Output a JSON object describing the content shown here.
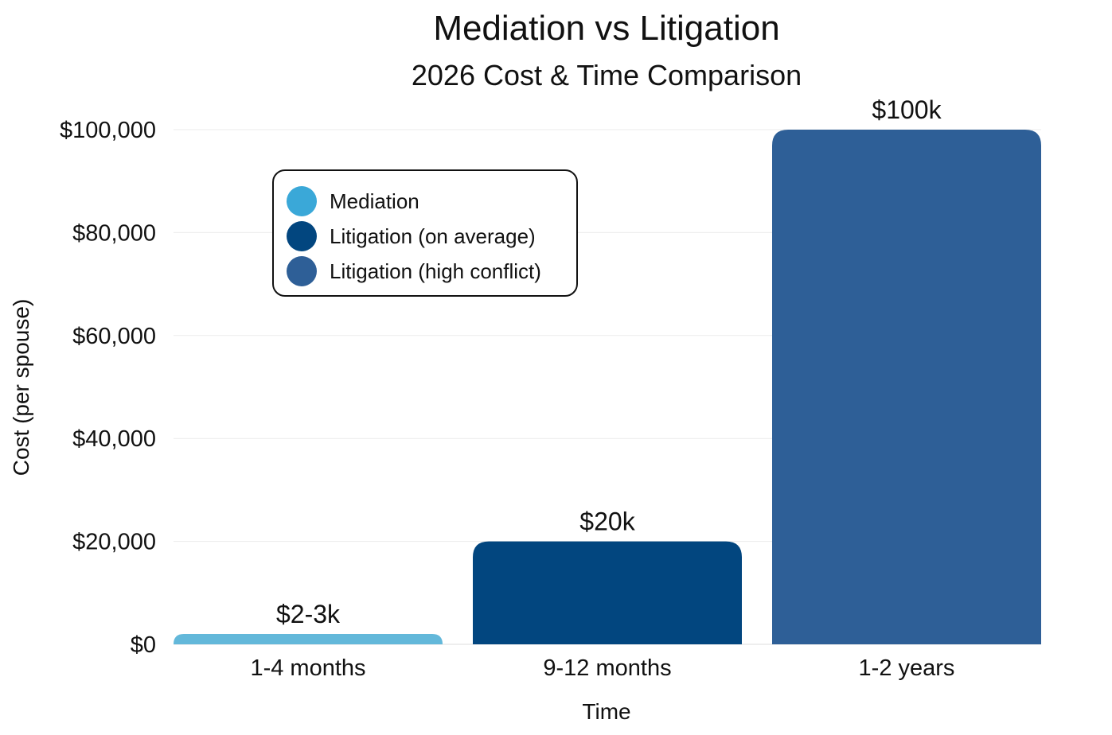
{
  "chart_data": {
    "type": "bar",
    "title": "Mediation vs Litigation",
    "subtitle": "2026 Cost & Time Comparison",
    "xlabel": "Time",
    "ylabel": "Cost (per spouse)",
    "ylim": [
      0,
      100000
    ],
    "yticks": [
      0,
      20000,
      40000,
      60000,
      80000,
      100000
    ],
    "ytick_labels": [
      "$0",
      "$20,000",
      "$40,000",
      "$60,000",
      "$80,000",
      "$100,000"
    ],
    "grid": true,
    "categories": [
      "1-4 months",
      "9-12 months",
      "1-2 years"
    ],
    "values": [
      2000,
      20000,
      100000
    ],
    "data_labels": [
      "$2-3k",
      "$20k",
      "$100k"
    ],
    "bar_colors": [
      "#63b8da",
      "#02467f",
      "#2e5f97"
    ],
    "legend": {
      "placement": "top-left",
      "entries": [
        {
          "name": "Mediation",
          "color": "#3aa8d8"
        },
        {
          "name": "Litigation (on average)",
          "color": "#02467f"
        },
        {
          "name": "Litigation (high conflict)",
          "color": "#2e5f97"
        }
      ]
    }
  }
}
